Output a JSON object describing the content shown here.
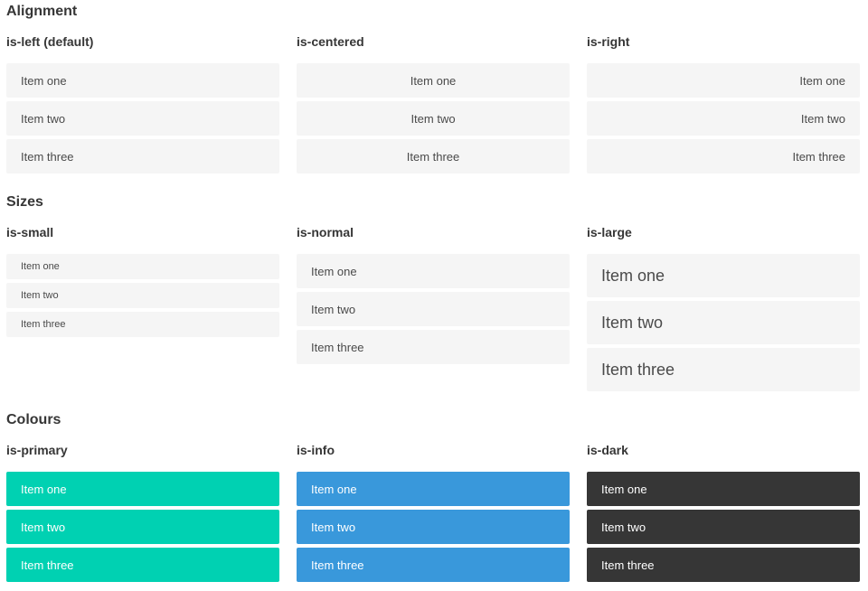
{
  "colors": {
    "page_bg": "#ffffff",
    "heading_text": "#363636",
    "item_bg_light": "#f5f5f5",
    "item_text_light": "#4a4a4a",
    "primary": "#00d1b2",
    "info": "#3998db",
    "dark": "#363636",
    "item_text_on_color": "#ffffff"
  },
  "sections": [
    {
      "title": "Alignment",
      "groups": [
        {
          "label": "is-left (default)",
          "items": [
            "Item one",
            "Item two",
            "Item three"
          ]
        },
        {
          "label": "is-centered",
          "items": [
            "Item one",
            "Item two",
            "Item three"
          ]
        },
        {
          "label": "is-right",
          "items": [
            "Item one",
            "Item two",
            "Item three"
          ]
        }
      ]
    },
    {
      "title": "Sizes",
      "groups": [
        {
          "label": "is-small",
          "items": [
            "Item one",
            "Item two",
            "Item three"
          ]
        },
        {
          "label": "is-normal",
          "items": [
            "Item one",
            "Item two",
            "Item three"
          ]
        },
        {
          "label": "is-large",
          "items": [
            "Item one",
            "Item two",
            "Item three"
          ]
        }
      ]
    },
    {
      "title": "Colours",
      "groups": [
        {
          "label": "is-primary",
          "items": [
            "Item one",
            "Item two",
            "Item three"
          ]
        },
        {
          "label": "is-info",
          "items": [
            "Item one",
            "Item two",
            "Item three"
          ]
        },
        {
          "label": "is-dark",
          "items": [
            "Item one",
            "Item two",
            "Item three"
          ]
        }
      ]
    }
  ]
}
